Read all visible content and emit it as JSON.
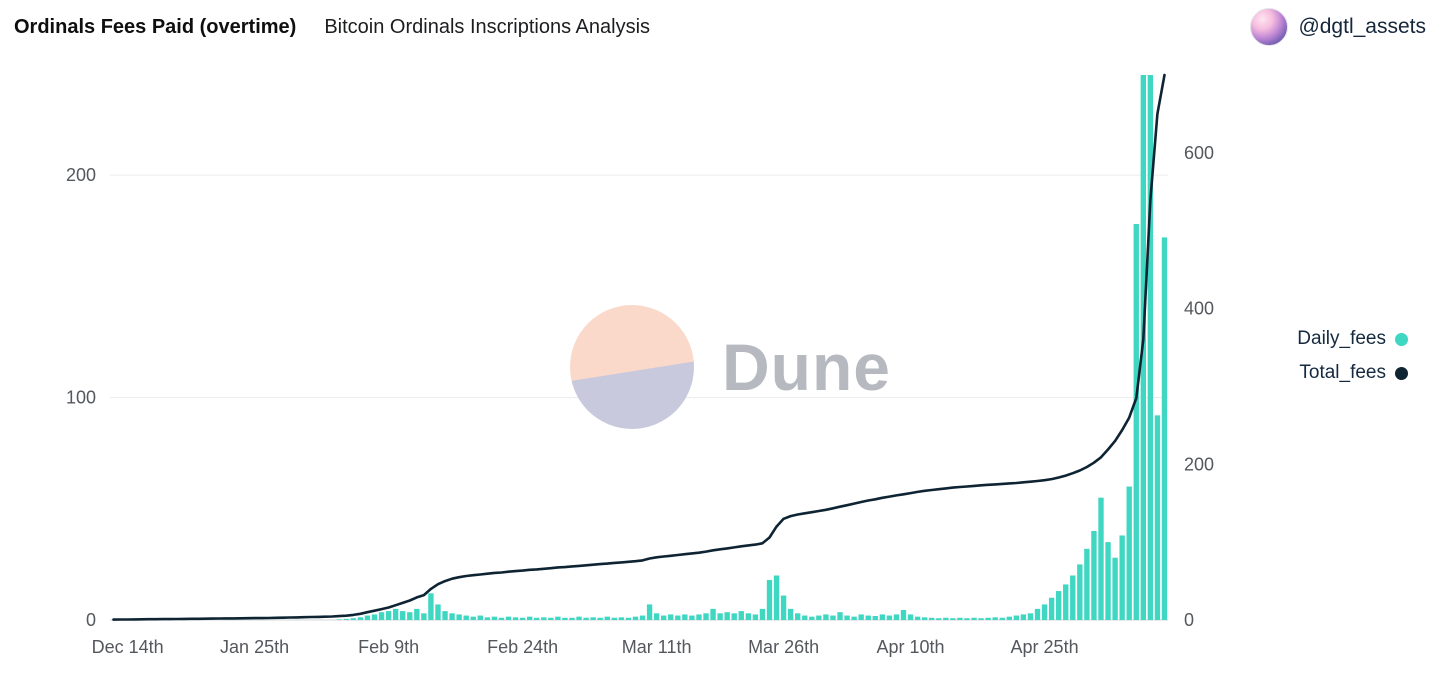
{
  "header": {
    "title": "Ordinals Fees Paid (overtime)",
    "subtitle": "Bitcoin Ordinals Inscriptions Analysis",
    "handle": "@dgtl_assets"
  },
  "legend": [
    {
      "label": "Daily_fees",
      "color": "#3fd6c2"
    },
    {
      "label": "Total_fees",
      "color": "#0e2433"
    }
  ],
  "watermark": {
    "text": "Dune"
  },
  "chart_data": {
    "type": "bar",
    "title": "Ordinals Fees Paid (overtime)",
    "subtitle": "Bitcoin Ordinals Inscriptions Analysis",
    "x_tick_labels": [
      "Dec 14th",
      "Jan 25th",
      "Feb 9th",
      "Feb 24th",
      "Mar 11th",
      "Mar 26th",
      "Apr 10th",
      "Apr 25th"
    ],
    "x_tick_indexes": [
      2,
      20,
      39,
      58,
      77,
      95,
      113,
      132
    ],
    "y_left": {
      "ticks": [
        0,
        100,
        200
      ],
      "max": 245
    },
    "y_right": {
      "ticks": [
        0,
        200,
        400,
        600
      ],
      "max": 700
    },
    "grid": "horizontal-left-ticks",
    "legend_position": "right",
    "series": [
      {
        "name": "Daily_fees",
        "type": "bar",
        "axis": "left",
        "color": "#3fd6c2",
        "values": [
          0,
          0,
          0,
          0,
          0,
          0,
          0,
          0,
          0,
          0,
          0,
          0,
          0,
          0,
          0,
          0,
          0,
          0,
          0,
          0,
          0,
          0,
          0,
          0,
          0,
          0,
          0,
          0,
          0,
          0,
          0,
          0,
          0.3,
          0.5,
          0.8,
          1.2,
          2,
          2.5,
          3.5,
          4,
          5,
          4,
          3.5,
          5,
          3,
          12,
          7,
          4,
          3,
          2.5,
          2,
          1.5,
          2,
          1.2,
          1.5,
          1,
          1.5,
          1.2,
          1,
          1.5,
          1,
          1.2,
          1,
          1.5,
          1,
          1,
          1.5,
          1,
          1.2,
          1,
          1.5,
          1,
          1.2,
          1,
          1.5,
          2,
          7,
          3,
          2,
          2.5,
          2,
          2.5,
          2,
          2.5,
          3,
          5,
          3,
          3.5,
          3,
          4,
          3,
          2.5,
          5,
          18,
          20,
          11,
          5,
          3,
          2,
          1.5,
          2,
          2.5,
          2,
          3.5,
          2,
          1.5,
          2.5,
          2,
          1.8,
          2.5,
          2,
          2.5,
          4.5,
          2.5,
          1.5,
          1.2,
          1,
          0.8,
          1,
          0.8,
          1,
          0.8,
          1,
          0.8,
          1,
          1.2,
          1,
          1.5,
          2,
          2.5,
          3,
          5,
          7,
          10,
          13,
          16,
          20,
          25,
          32,
          40,
          55,
          35,
          28,
          38,
          60,
          178,
          252,
          248,
          92,
          172
        ]
      },
      {
        "name": "Total_fees",
        "type": "line",
        "axis": "right",
        "color": "#0e2433",
        "values": [
          0.5,
          0.6,
          0.7,
          0.8,
          0.9,
          1,
          1,
          1.1,
          1.2,
          1.3,
          1.4,
          1.5,
          1.6,
          1.7,
          1.8,
          1.9,
          2,
          2.1,
          2.2,
          2.3,
          2.4,
          2.5,
          2.6,
          2.8,
          3,
          3.2,
          3.4,
          3.6,
          3.8,
          4,
          4.2,
          4.5,
          5,
          5.5,
          6.5,
          8,
          10,
          12,
          14,
          16,
          19,
          22,
          25,
          29,
          32,
          40,
          46,
          50,
          53,
          55,
          56.5,
          57.5,
          58.5,
          59.5,
          60.5,
          61,
          62,
          62.8,
          63.5,
          64.5,
          65,
          65.8,
          66.5,
          67.5,
          68,
          68.8,
          69.5,
          70.3,
          71,
          71.8,
          72.5,
          73.3,
          74,
          74.8,
          75.5,
          76.5,
          79,
          80.5,
          81.5,
          82.5,
          83.5,
          84.5,
          85.5,
          86.5,
          87.8,
          89.5,
          90.8,
          92,
          93.2,
          94.6,
          95.8,
          96.8,
          98.5,
          106,
          120,
          130,
          133.5,
          135.5,
          137,
          138.5,
          140,
          141.5,
          143.5,
          145.5,
          147.5,
          149.5,
          151.5,
          153.5,
          155,
          157,
          158.5,
          160,
          161.5,
          163,
          164.5,
          166,
          167,
          168,
          169,
          170,
          170.8,
          171.5,
          172.2,
          173,
          173.6,
          174.2,
          174.8,
          175.4,
          176,
          176.8,
          177.6,
          178.5,
          179.5,
          181,
          183,
          185.5,
          188.5,
          192,
          196.5,
          202,
          209,
          219,
          230,
          244,
          260,
          285,
          360,
          540,
          650,
          700
        ]
      }
    ]
  }
}
